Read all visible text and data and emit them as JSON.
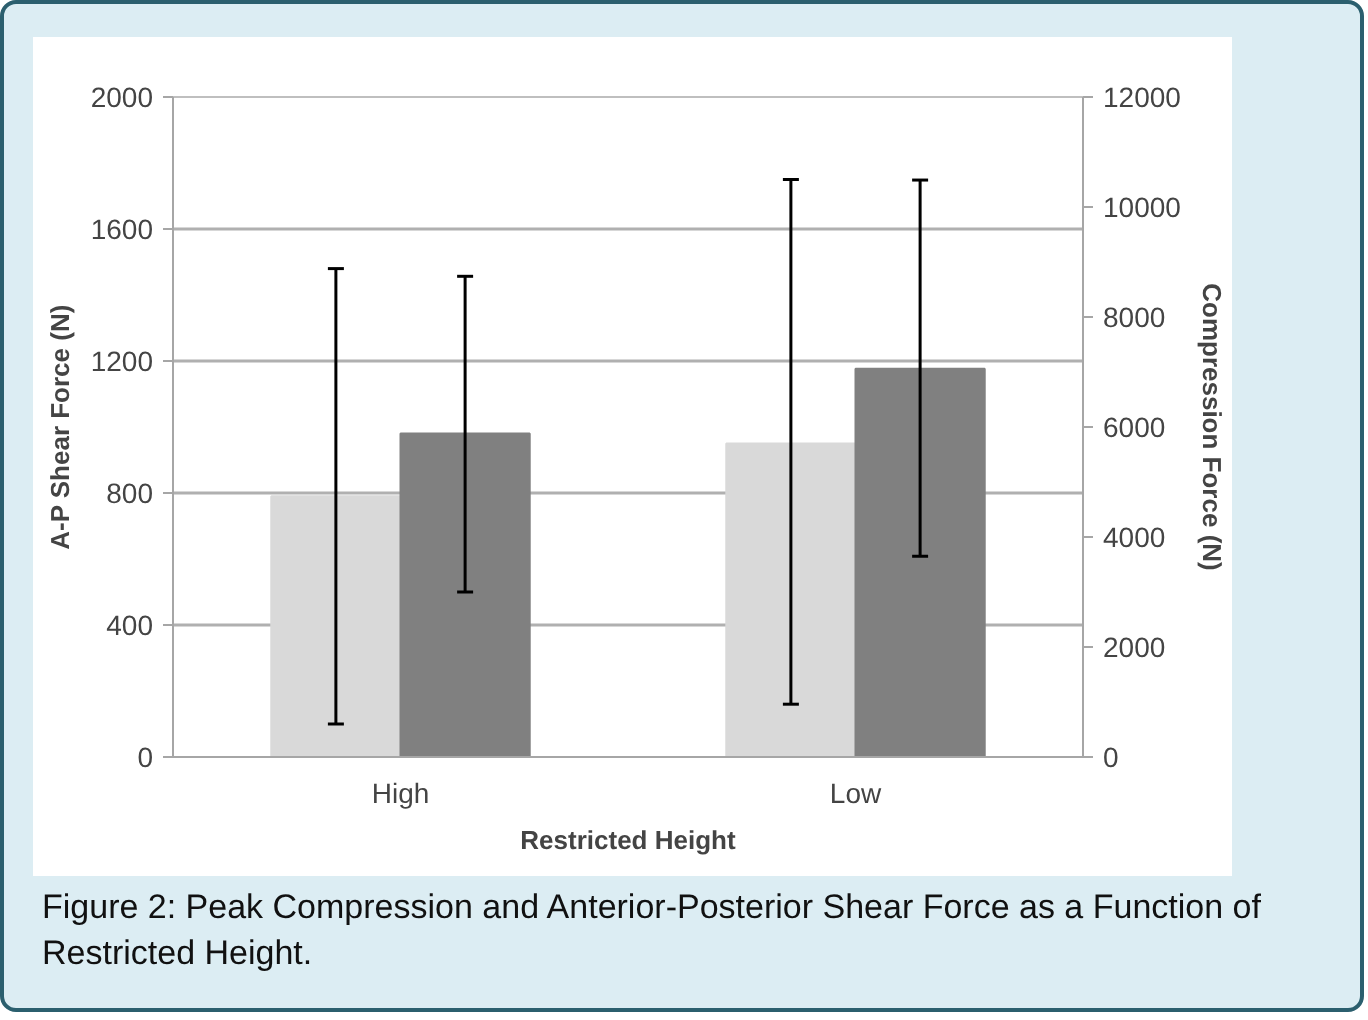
{
  "chart_data": {
    "type": "bar",
    "xlabel": "Restricted Height",
    "ylabel": "A-P Shear Force (N)",
    "y2label": "Compression Force (N)",
    "categories": [
      "High",
      "Low"
    ],
    "series": [
      {
        "color": "#d9d9d9",
        "values": [
          790,
          950
        ],
        "errors": [
          [
            100,
            1480
          ],
          [
            160,
            1750
          ]
        ]
      },
      {
        "color": "#808080",
        "values": [
          5880,
          7060
        ],
        "errors": [
          [
            3000,
            8740
          ],
          [
            3650,
            10490
          ]
        ],
        "axis": "y2"
      }
    ],
    "ylim": [
      0,
      2000
    ],
    "yticks": [
      0,
      400,
      800,
      1200,
      1600,
      2000
    ],
    "y2lim": [
      0,
      12000
    ],
    "y2ticks": [
      0,
      2000,
      4000,
      6000,
      8000,
      10000,
      12000
    ],
    "grid": "y",
    "annotations": [
      "Figure 2: Peak Compression and Anterior-Posterior Shear Force as a Function of Restricted Height."
    ]
  }
}
